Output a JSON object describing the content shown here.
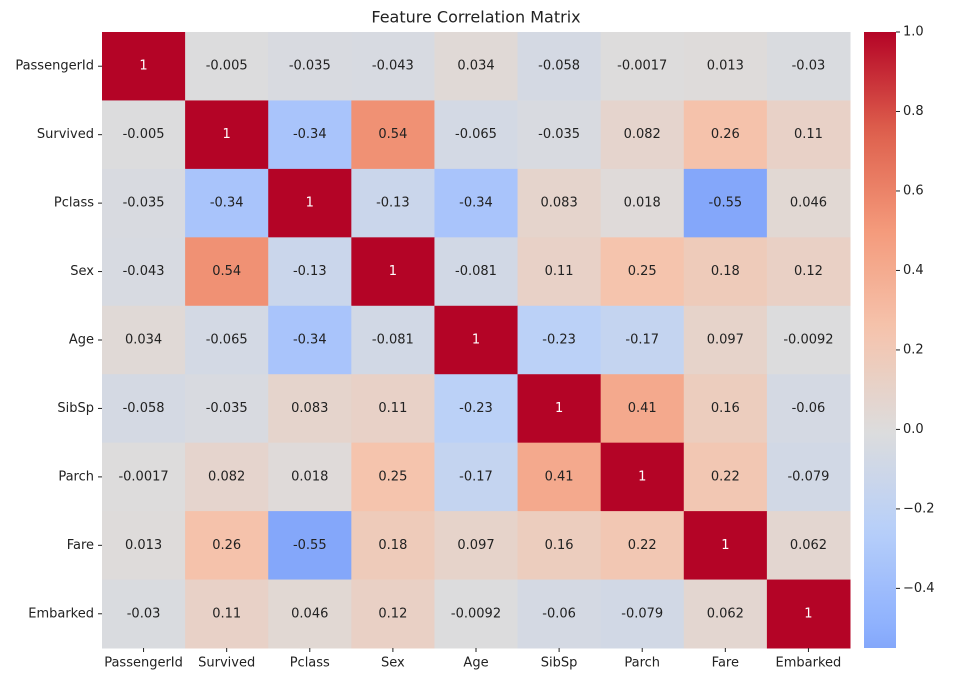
{
  "chart_data": {
    "type": "heatmap",
    "title": "Feature Correlation Matrix",
    "colormap": "coolwarm",
    "center": 0,
    "x": [
      "PassengerId",
      "Survived",
      "Pclass",
      "Sex",
      "Age",
      "SibSp",
      "Parch",
      "Fare",
      "Embarked"
    ],
    "y": [
      "PassengerId",
      "Survived",
      "Pclass",
      "Sex",
      "Age",
      "SibSp",
      "Parch",
      "Fare",
      "Embarked"
    ],
    "values": [
      [
        1,
        -0.005,
        -0.035,
        -0.043,
        0.034,
        -0.058,
        -0.0017,
        0.013,
        -0.03
      ],
      [
        -0.005,
        1,
        -0.34,
        0.54,
        -0.065,
        -0.035,
        0.082,
        0.26,
        0.11
      ],
      [
        -0.035,
        -0.34,
        1,
        -0.13,
        -0.34,
        0.083,
        0.018,
        -0.55,
        0.046
      ],
      [
        -0.043,
        0.54,
        -0.13,
        1,
        -0.081,
        0.11,
        0.25,
        0.18,
        0.12
      ],
      [
        0.034,
        -0.065,
        -0.34,
        -0.081,
        1,
        -0.23,
        -0.17,
        0.097,
        -0.0092
      ],
      [
        -0.058,
        -0.035,
        0.083,
        0.11,
        -0.23,
        1,
        0.41,
        0.16,
        -0.06
      ],
      [
        -0.0017,
        0.082,
        0.018,
        0.25,
        -0.17,
        0.41,
        1,
        0.22,
        -0.079
      ],
      [
        0.013,
        0.26,
        -0.55,
        0.18,
        0.097,
        0.16,
        0.22,
        1,
        0.062
      ],
      [
        -0.03,
        0.11,
        0.046,
        0.12,
        -0.0092,
        -0.06,
        -0.079,
        0.062,
        1
      ]
    ],
    "zlim": [
      -0.55,
      1
    ],
    "zticks": [
      {
        "value": -0.4,
        "label": "−0.4"
      },
      {
        "value": -0.2,
        "label": "−0.2"
      },
      {
        "value": 0,
        "label": "0.0"
      },
      {
        "value": 0.2,
        "label": "0.2"
      },
      {
        "value": 0.4,
        "label": "0.4"
      },
      {
        "value": 0.6,
        "label": "0.6"
      },
      {
        "value": 0.8,
        "label": "0.8"
      },
      {
        "value": 1,
        "label": "1.0"
      }
    ]
  }
}
